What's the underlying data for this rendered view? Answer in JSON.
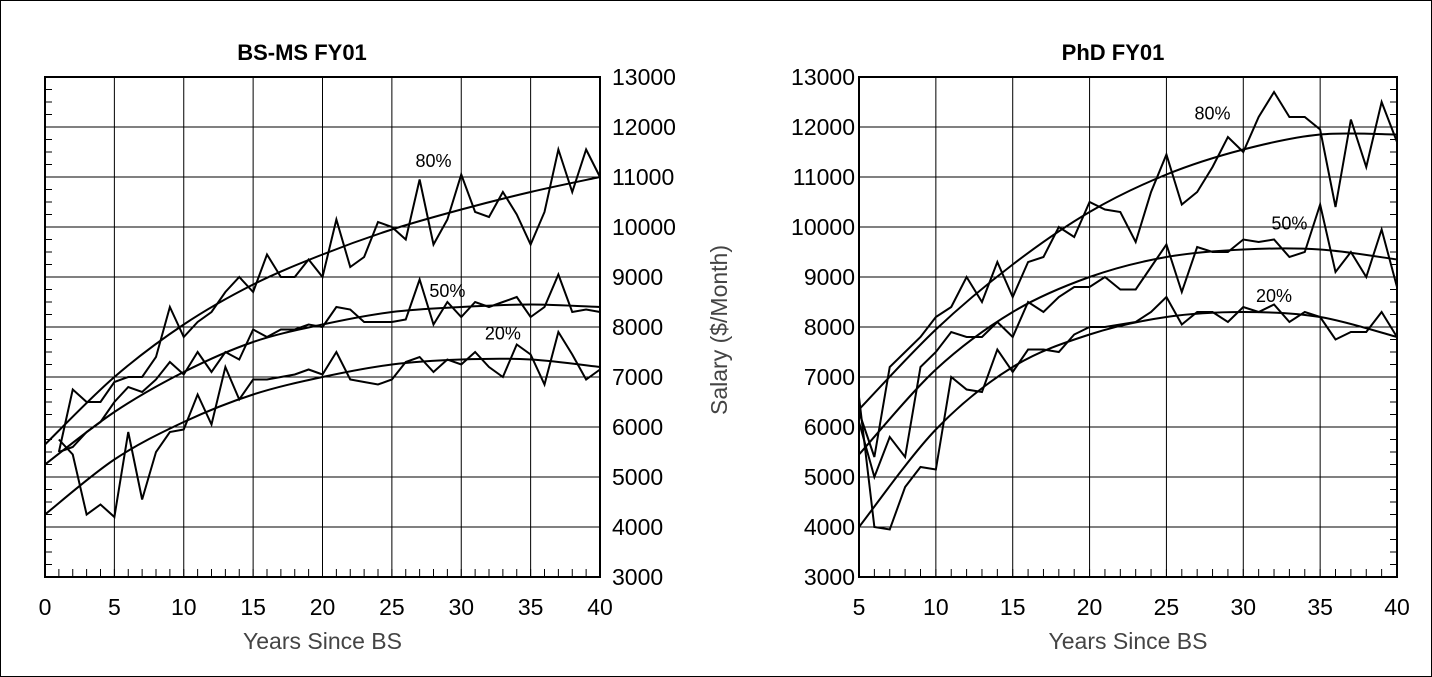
{
  "shared_axis": {
    "ylabel": "Salary ($/Month)",
    "ylim": [
      3000,
      13000
    ],
    "yticks": [
      "3000",
      "4000",
      "5000",
      "6000",
      "7000",
      "8000",
      "9000",
      "10000",
      "11000",
      "12000",
      "13000"
    ]
  },
  "chart_data": [
    {
      "type": "line",
      "title": "BS-MS FY01",
      "xlabel": "Years Since BS",
      "ylabel": "",
      "xlim": [
        0,
        40
      ],
      "ylim": [
        3000,
        13000
      ],
      "xticks": [
        "0",
        "5",
        "10",
        "15",
        "20",
        "25",
        "30",
        "35",
        "40"
      ],
      "grid": true,
      "series": [
        {
          "name": "80%",
          "kind": "observed",
          "x": [
            1,
            2,
            3,
            4,
            5,
            6,
            7,
            8,
            9,
            10,
            11,
            12,
            13,
            14,
            15,
            16,
            17,
            18,
            19,
            20,
            21,
            22,
            23,
            24,
            25,
            26,
            27,
            28,
            29,
            30,
            31,
            32,
            33,
            34,
            35,
            36,
            37,
            38,
            39,
            40
          ],
          "values": [
            5500,
            6750,
            6500,
            6500,
            6900,
            7000,
            7000,
            7400,
            8400,
            7800,
            8100,
            8300,
            8700,
            9000,
            8700,
            9450,
            9000,
            9000,
            9350,
            9000,
            10150,
            9200,
            9400,
            10100,
            10000,
            9750,
            10950,
            9650,
            10150,
            11050,
            10300,
            10200,
            10700,
            10250,
            9650,
            10300,
            11550,
            10700,
            11550,
            11000
          ]
        },
        {
          "name": "50%",
          "kind": "observed",
          "x": [
            1,
            2,
            3,
            4,
            5,
            6,
            7,
            8,
            9,
            10,
            11,
            12,
            13,
            14,
            15,
            16,
            17,
            18,
            19,
            20,
            21,
            22,
            23,
            24,
            25,
            26,
            27,
            28,
            29,
            30,
            31,
            32,
            33,
            34,
            35,
            36,
            37,
            38,
            39,
            40
          ],
          "values": [
            5500,
            5600,
            5900,
            6100,
            6500,
            6800,
            6700,
            6950,
            7300,
            7050,
            7500,
            7100,
            7500,
            7350,
            7950,
            7800,
            7950,
            7950,
            8050,
            8000,
            8400,
            8350,
            8100,
            8100,
            8100,
            8150,
            8950,
            8050,
            8500,
            8200,
            8500,
            8400,
            8500,
            8600,
            8200,
            8400,
            9050,
            8300,
            8350,
            8300
          ]
        },
        {
          "name": "20%",
          "kind": "observed",
          "x": [
            1,
            2,
            3,
            4,
            5,
            6,
            7,
            8,
            9,
            10,
            11,
            12,
            13,
            14,
            15,
            16,
            17,
            18,
            19,
            20,
            21,
            22,
            23,
            24,
            25,
            26,
            27,
            28,
            29,
            30,
            31,
            32,
            33,
            34,
            35,
            36,
            37,
            38,
            39,
            40
          ],
          "values": [
            5750,
            5450,
            4250,
            4450,
            4200,
            5900,
            4550,
            5500,
            5900,
            5950,
            6650,
            6050,
            7200,
            6550,
            6950,
            6950,
            7000,
            7050,
            7150,
            7050,
            7500,
            6950,
            6900,
            6850,
            6950,
            7300,
            7400,
            7100,
            7350,
            7250,
            7500,
            7200,
            7000,
            7650,
            7450,
            6850,
            7900,
            7450,
            6950,
            7150
          ]
        },
        {
          "name": "",
          "kind": "fit",
          "x": [
            0,
            5,
            10,
            15,
            20,
            25,
            30,
            35,
            40
          ],
          "values": [
            5650,
            7000,
            8050,
            8850,
            9450,
            9950,
            10350,
            10700,
            11000
          ]
        },
        {
          "name": "",
          "kind": "fit",
          "x": [
            0,
            5,
            10,
            15,
            20,
            25,
            30,
            35,
            40
          ],
          "values": [
            5250,
            6300,
            7100,
            7700,
            8050,
            8300,
            8400,
            8450,
            8400
          ]
        },
        {
          "name": "",
          "kind": "fit",
          "x": [
            0,
            5,
            10,
            15,
            20,
            25,
            30,
            35,
            40
          ],
          "values": [
            4250,
            5350,
            6100,
            6650,
            7000,
            7250,
            7350,
            7350,
            7200
          ]
        }
      ],
      "labels": [
        {
          "text": "80%",
          "x": 28,
          "y": 11200
        },
        {
          "text": "50%",
          "x": 29,
          "y": 8600
        },
        {
          "text": "20%",
          "x": 33,
          "y": 7750
        }
      ]
    },
    {
      "type": "line",
      "title": "PhD FY01",
      "xlabel": "Years Since BS",
      "ylabel": "",
      "xlim": [
        5,
        40
      ],
      "ylim": [
        3000,
        13000
      ],
      "xticks": [
        "5",
        "10",
        "15",
        "20",
        "25",
        "30",
        "35",
        "40"
      ],
      "grid": true,
      "series": [
        {
          "name": "80%",
          "kind": "observed",
          "x": [
            5,
            6,
            7,
            8,
            9,
            10,
            11,
            12,
            13,
            14,
            15,
            16,
            17,
            18,
            19,
            20,
            21,
            22,
            23,
            24,
            25,
            26,
            27,
            28,
            29,
            30,
            31,
            32,
            33,
            34,
            35,
            36,
            37,
            38,
            39,
            40
          ],
          "values": [
            6300,
            5400,
            7200,
            7500,
            7800,
            8200,
            8400,
            9000,
            8500,
            9300,
            8600,
            9300,
            9400,
            10000,
            9800,
            10500,
            10350,
            10300,
            9700,
            10700,
            11450,
            10450,
            10700,
            11200,
            11800,
            11500,
            12200,
            12700,
            12200,
            12200,
            11950,
            10400,
            12150,
            11200,
            12500,
            11700
          ]
        },
        {
          "name": "50%",
          "kind": "observed",
          "x": [
            5,
            6,
            7,
            8,
            9,
            10,
            11,
            12,
            13,
            14,
            15,
            16,
            17,
            18,
            19,
            20,
            21,
            22,
            23,
            24,
            25,
            26,
            27,
            28,
            29,
            30,
            31,
            32,
            33,
            34,
            35,
            36,
            37,
            38,
            39,
            40
          ],
          "values": [
            6100,
            5000,
            5800,
            5400,
            7200,
            7500,
            7900,
            7800,
            7800,
            8100,
            7800,
            8500,
            8300,
            8600,
            8800,
            8800,
            9000,
            8750,
            8750,
            9200,
            9650,
            8700,
            9600,
            9500,
            9500,
            9750,
            9700,
            9750,
            9400,
            9500,
            10450,
            9100,
            9500,
            9000,
            9950,
            8800
          ]
        },
        {
          "name": "20%",
          "kind": "observed",
          "x": [
            5,
            6,
            7,
            8,
            9,
            10,
            11,
            12,
            13,
            14,
            15,
            16,
            17,
            18,
            19,
            20,
            21,
            22,
            23,
            24,
            25,
            26,
            27,
            28,
            29,
            30,
            31,
            32,
            33,
            34,
            35,
            36,
            37,
            38,
            39,
            40
          ],
          "values": [
            6600,
            4000,
            3950,
            4800,
            5200,
            5150,
            7000,
            6750,
            6700,
            7550,
            7100,
            7550,
            7550,
            7500,
            7850,
            8000,
            8000,
            8050,
            8100,
            8300,
            8600,
            8050,
            8300,
            8300,
            8100,
            8400,
            8300,
            8450,
            8100,
            8300,
            8200,
            7750,
            7900,
            7900,
            8300,
            7800
          ]
        },
        {
          "name": "",
          "kind": "fit",
          "x": [
            5,
            10,
            15,
            20,
            25,
            30,
            35,
            40
          ],
          "values": [
            6350,
            7950,
            9250,
            10300,
            11050,
            11550,
            11850,
            11850
          ]
        },
        {
          "name": "",
          "kind": "fit",
          "x": [
            5,
            10,
            15,
            20,
            25,
            30,
            35,
            40
          ],
          "values": [
            5450,
            7150,
            8300,
            9000,
            9400,
            9550,
            9550,
            9350
          ]
        },
        {
          "name": "",
          "kind": "fit",
          "x": [
            5,
            10,
            15,
            20,
            25,
            30,
            35,
            40
          ],
          "values": [
            4000,
            5950,
            7200,
            7850,
            8200,
            8300,
            8200,
            7800
          ]
        }
      ],
      "labels": [
        {
          "text": "80%",
          "x": 28,
          "y": 12150
        },
        {
          "text": "50%",
          "x": 33,
          "y": 9950
        },
        {
          "text": "20%",
          "x": 32,
          "y": 8500
        }
      ]
    }
  ]
}
